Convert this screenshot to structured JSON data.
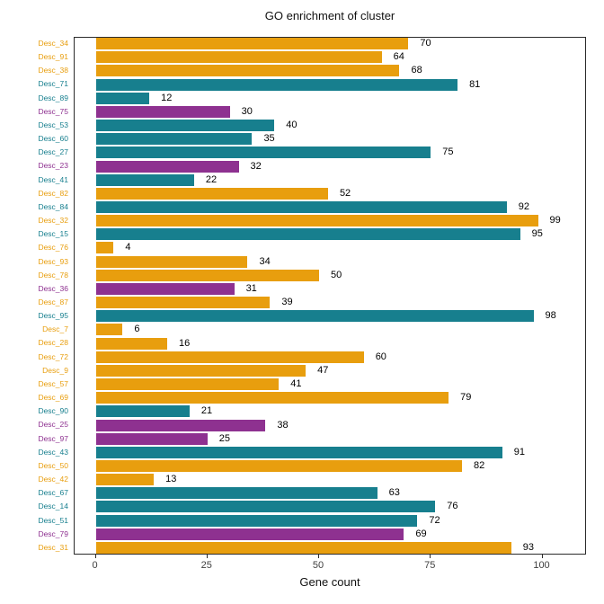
{
  "chart_data": {
    "type": "bar",
    "orientation": "horizontal",
    "title": "GO enrichment of cluster",
    "xlabel": "Gene count",
    "ylabel": "",
    "x_ticks": [
      0,
      25,
      50,
      75,
      100
    ],
    "xlim": [
      -5,
      110
    ],
    "grid": "off",
    "legend": "none",
    "palette": {
      "orange": "#E89E0E",
      "teal": "#177F8E",
      "purple": "#8E3190"
    },
    "categories": [
      "Desc_34",
      "Desc_91",
      "Desc_38",
      "Desc_71",
      "Desc_89",
      "Desc_75",
      "Desc_53",
      "Desc_60",
      "Desc_27",
      "Desc_23",
      "Desc_41",
      "Desc_82",
      "Desc_84",
      "Desc_32",
      "Desc_15",
      "Desc_76",
      "Desc_93",
      "Desc_78",
      "Desc_36",
      "Desc_87",
      "Desc_95",
      "Desc_7",
      "Desc_28",
      "Desc_72",
      "Desc_9",
      "Desc_57",
      "Desc_69",
      "Desc_90",
      "Desc_25",
      "Desc_97",
      "Desc_43",
      "Desc_50",
      "Desc_42",
      "Desc_67",
      "Desc_14",
      "Desc_51",
      "Desc_79",
      "Desc_31"
    ],
    "values": [
      70,
      64,
      68,
      81,
      12,
      30,
      40,
      35,
      75,
      32,
      22,
      52,
      92,
      99,
      95,
      4,
      34,
      50,
      31,
      39,
      98,
      6,
      16,
      60,
      47,
      41,
      79,
      21,
      38,
      25,
      91,
      82,
      13,
      63,
      76,
      72,
      69,
      93
    ],
    "color_keys": [
      "orange",
      "orange",
      "orange",
      "teal",
      "teal",
      "purple",
      "teal",
      "teal",
      "teal",
      "purple",
      "teal",
      "orange",
      "teal",
      "orange",
      "teal",
      "orange",
      "orange",
      "orange",
      "purple",
      "orange",
      "teal",
      "orange",
      "orange",
      "orange",
      "orange",
      "orange",
      "orange",
      "teal",
      "purple",
      "purple",
      "teal",
      "orange",
      "orange",
      "teal",
      "teal",
      "teal",
      "purple",
      "orange"
    ]
  }
}
